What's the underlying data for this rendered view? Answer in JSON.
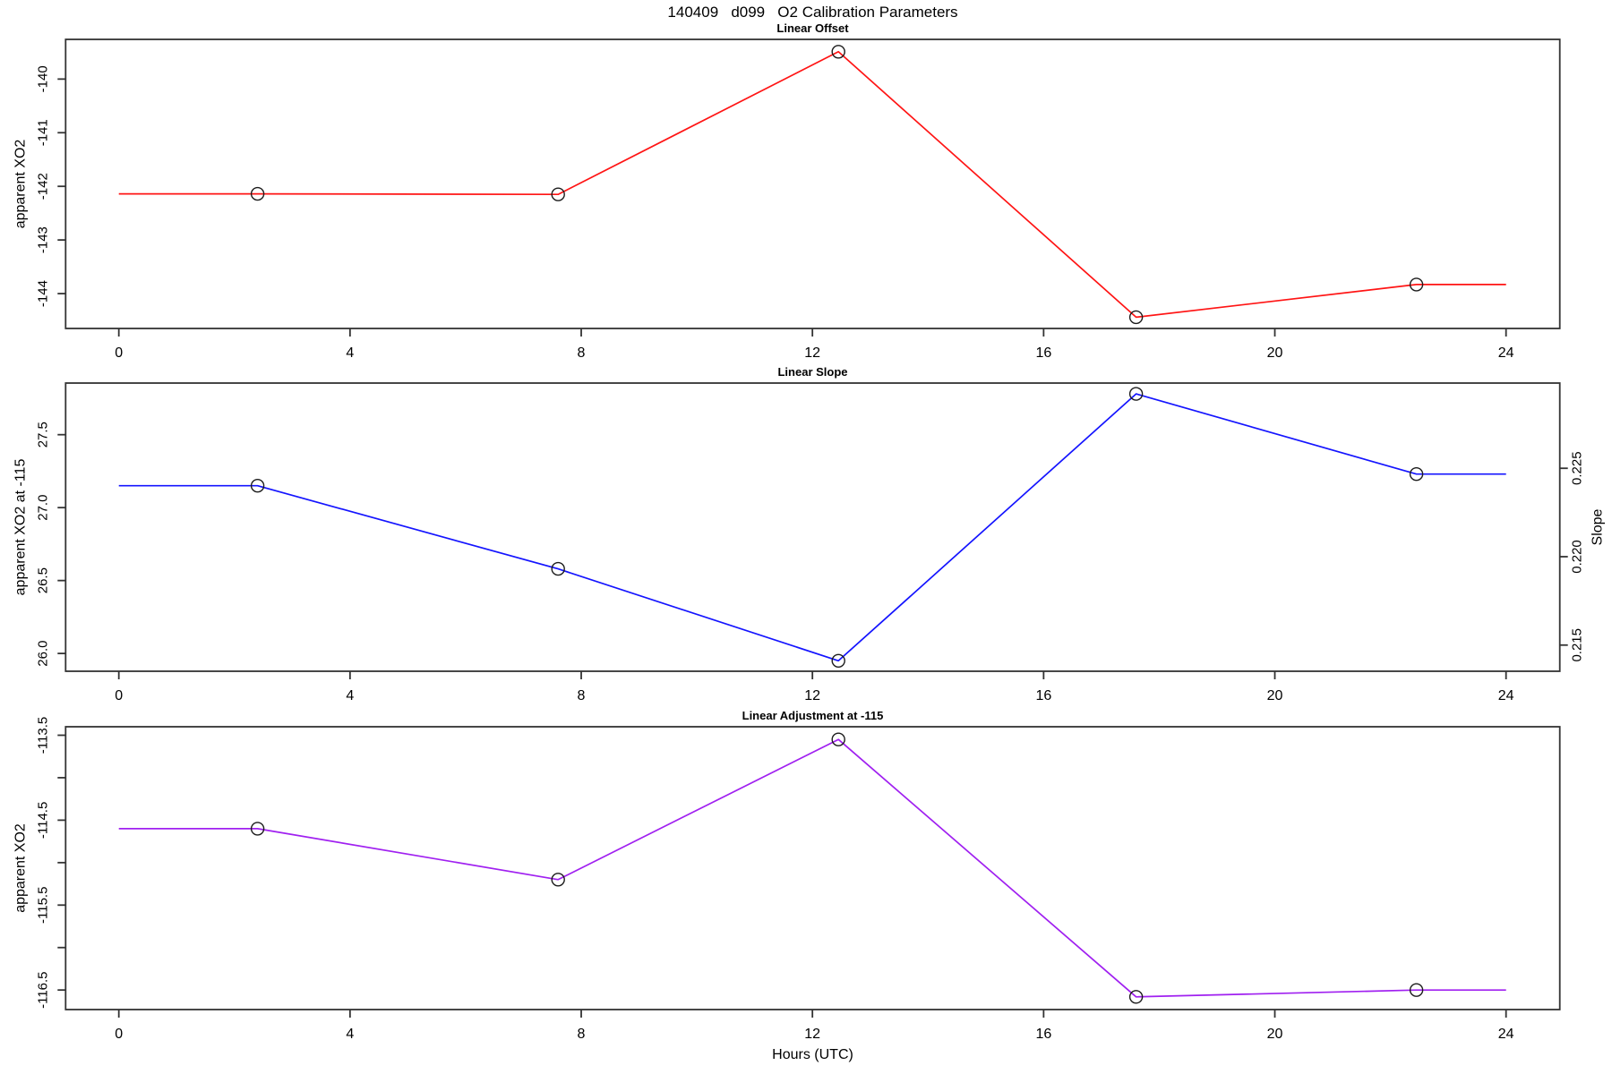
{
  "page_title": "140409   d099   O2 Calibration Parameters",
  "x_axis": {
    "label": "Hours (UTC)",
    "ticks": [
      "0",
      "4",
      "8",
      "12",
      "16",
      "20",
      "24"
    ],
    "tick_values": [
      0,
      4,
      8,
      12,
      16,
      20,
      24
    ],
    "xlim": [
      -0.92,
      24.93
    ]
  },
  "chart_data": [
    {
      "type": "line",
      "title": "Linear Offset",
      "ylabel": "apparent XO2",
      "line_color": "#ff1414",
      "marker_color": "#1c1c1c",
      "x": [
        2.4,
        7.6,
        12.45,
        17.6,
        22.45
      ],
      "y": [
        -142.14,
        -142.15,
        -139.49,
        -144.44,
        -143.83
      ],
      "line_x": [
        0,
        2.4,
        7.6,
        12.45,
        17.6,
        22.45,
        24
      ],
      "line_y": [
        -142.14,
        -142.14,
        -142.15,
        -139.49,
        -144.44,
        -143.83,
        -143.83
      ],
      "ylim": [
        -144.65,
        -139.26
      ],
      "yticks": [
        {
          "value": -140,
          "label": "-140"
        },
        {
          "value": -141,
          "label": "-141"
        },
        {
          "value": -142,
          "label": "-142"
        },
        {
          "value": -143,
          "label": "-143"
        },
        {
          "value": -144,
          "label": "-144"
        }
      ],
      "grid": false
    },
    {
      "type": "line",
      "title": "Linear Slope",
      "ylabel": "apparent XO2 at -115",
      "ylabel_right": "Slope",
      "line_color": "#1414ff",
      "marker_color": "#1c1c1c",
      "x": [
        2.4,
        7.6,
        12.45,
        17.6,
        22.45
      ],
      "y": [
        27.15,
        26.58,
        25.95,
        27.78,
        27.23
      ],
      "y_right_axis": [
        0.224,
        0.2193,
        0.2141,
        0.2292,
        0.2247
      ],
      "line_x": [
        0,
        2.4,
        7.6,
        12.45,
        17.6,
        22.45,
        24
      ],
      "line_y": [
        27.15,
        27.15,
        26.58,
        25.95,
        27.78,
        27.23,
        27.23
      ],
      "ylim": [
        25.878,
        27.854
      ],
      "yticks": [
        {
          "value": 26.0,
          "label": "26.0"
        },
        {
          "value": 26.5,
          "label": "26.5"
        },
        {
          "value": 27.0,
          "label": "27.0"
        },
        {
          "value": 27.5,
          "label": "27.5"
        }
      ],
      "right_ylim": [
        0.21352,
        0.22982
      ],
      "right_yticks": [
        {
          "value": 0.215,
          "label": "0.215"
        },
        {
          "value": 0.22,
          "label": "0.220"
        },
        {
          "value": 0.225,
          "label": "0.225"
        }
      ],
      "grid": false
    },
    {
      "type": "line",
      "title": "Linear Adjustment at -115",
      "ylabel": "apparent XO2",
      "line_color": "#a020f0",
      "marker_color": "#1c1c1c",
      "x": [
        2.4,
        7.6,
        12.45,
        17.6,
        22.45
      ],
      "y": [
        -114.6,
        -115.2,
        -113.55,
        -116.58,
        -116.5
      ],
      "line_x": [
        0,
        2.4,
        7.6,
        12.45,
        17.6,
        22.45,
        24
      ],
      "line_y": [
        -114.6,
        -114.6,
        -115.2,
        -113.55,
        -116.58,
        -116.5,
        -116.5
      ],
      "ylim": [
        -116.73,
        -113.4
      ],
      "yticks": [
        {
          "value": -113.5,
          "label": "-113.5"
        },
        {
          "value": -114.0,
          "label": ""
        },
        {
          "value": -114.5,
          "label": "-114.5"
        },
        {
          "value": -115.0,
          "label": ""
        },
        {
          "value": -115.5,
          "label": "-115.5"
        },
        {
          "value": -116.0,
          "label": ""
        },
        {
          "value": -116.5,
          "label": "-116.5"
        }
      ],
      "grid": false
    }
  ]
}
